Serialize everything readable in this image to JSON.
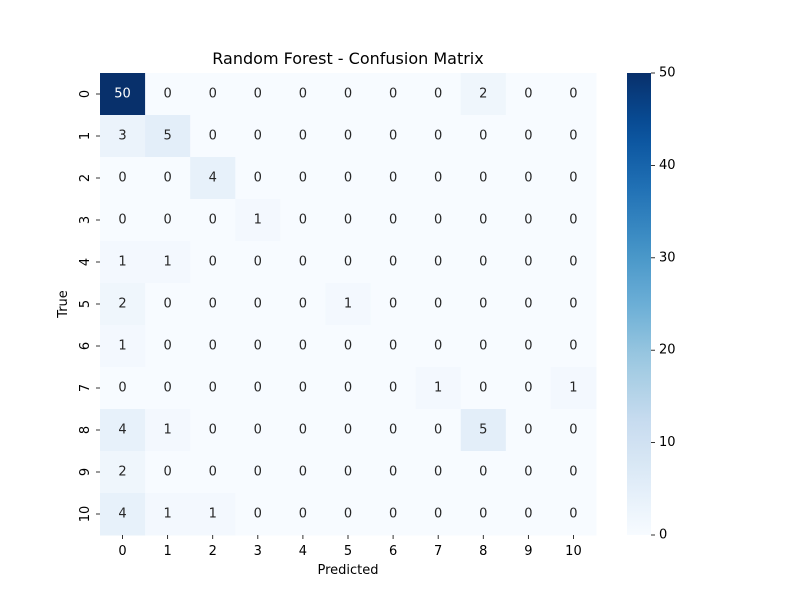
{
  "chart_data": {
    "type": "heatmap",
    "title": "Random Forest - Confusion Matrix",
    "xlabel": "Predicted",
    "ylabel": "True",
    "x_categories": [
      "0",
      "1",
      "2",
      "3",
      "4",
      "5",
      "6",
      "7",
      "8",
      "9",
      "10"
    ],
    "y_categories": [
      "0",
      "1",
      "2",
      "3",
      "4",
      "5",
      "6",
      "7",
      "8",
      "9",
      "10"
    ],
    "matrix": [
      [
        50,
        0,
        0,
        0,
        0,
        0,
        0,
        0,
        2,
        0,
        0
      ],
      [
        3,
        5,
        0,
        0,
        0,
        0,
        0,
        0,
        0,
        0,
        0
      ],
      [
        0,
        0,
        4,
        0,
        0,
        0,
        0,
        0,
        0,
        0,
        0
      ],
      [
        0,
        0,
        0,
        1,
        0,
        0,
        0,
        0,
        0,
        0,
        0
      ],
      [
        1,
        1,
        0,
        0,
        0,
        0,
        0,
        0,
        0,
        0,
        0
      ],
      [
        2,
        0,
        0,
        0,
        0,
        1,
        0,
        0,
        0,
        0,
        0
      ],
      [
        1,
        0,
        0,
        0,
        0,
        0,
        0,
        0,
        0,
        0,
        0
      ],
      [
        0,
        0,
        0,
        0,
        0,
        0,
        0,
        1,
        0,
        0,
        1
      ],
      [
        4,
        1,
        0,
        0,
        0,
        0,
        0,
        0,
        5,
        0,
        0
      ],
      [
        2,
        0,
        0,
        0,
        0,
        0,
        0,
        0,
        0,
        0,
        0
      ],
      [
        4,
        1,
        1,
        0,
        0,
        0,
        0,
        0,
        0,
        0,
        0
      ]
    ],
    "colorbar": {
      "min": 0,
      "max": 50,
      "ticks": [
        0,
        10,
        20,
        30,
        40,
        50
      ],
      "colormap": "Blues"
    },
    "grid": false,
    "legend": "colorbar-right"
  },
  "colors": {
    "text_dark": "#262626",
    "text_light": "#ffffff",
    "axis": "#000000"
  }
}
